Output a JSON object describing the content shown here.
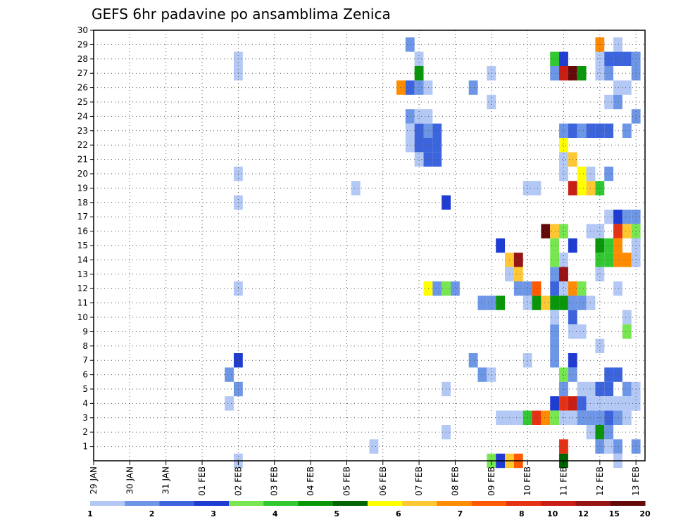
{
  "chart_data": {
    "type": "heatmap",
    "title": "GEFS 6hr padavine po ansamblima Zenica",
    "xlabel": "",
    "ylabel": "",
    "x_tick_labels": [
      "29 JAN",
      "30 JAN",
      "31 JAN",
      "01 FEB",
      "02 FEB",
      "03 FEB",
      "04 FEB",
      "05 FEB",
      "06 FEB",
      "07 FEB",
      "08 FEB",
      "09 FEB",
      "10 FEB",
      "11 FEB",
      "12 FEB",
      "13 FEB"
    ],
    "x_range_days": [
      0,
      15.25
    ],
    "y_tick_labels": [
      "1",
      "2",
      "3",
      "4",
      "5",
      "6",
      "7",
      "8",
      "9",
      "10",
      "11",
      "12",
      "13",
      "14",
      "15",
      "16",
      "17",
      "18",
      "19",
      "20",
      "21",
      "22",
      "23",
      "24",
      "25",
      "26",
      "27",
      "28",
      "29",
      "30"
    ],
    "ylim": [
      0,
      30
    ],
    "grid": true,
    "colorbar": {
      "placement": "bottom",
      "tick_labels": [
        "1",
        "2",
        "3",
        "4",
        "5",
        "6",
        "7",
        "8",
        "10",
        "12",
        "15",
        "20"
      ],
      "colors": [
        "#b4c8f5",
        "#6e96e6",
        "#3c64dc",
        "#1e3cd2",
        "#78e650",
        "#32c832",
        "#0a960a",
        "#006400",
        "#ffff00",
        "#ffc832",
        "#ff8c00",
        "#ff5a00",
        "#e63214",
        "#c81e14",
        "#961414",
        "#640a0a"
      ]
    },
    "cells": [
      [
        4,
        28,
        1
      ],
      [
        4,
        27,
        1
      ],
      [
        4,
        20,
        1
      ],
      [
        4,
        18,
        1
      ],
      [
        4,
        12,
        1
      ],
      [
        4,
        7,
        4
      ],
      [
        3.75,
        6,
        2
      ],
      [
        4,
        5,
        2
      ],
      [
        3.75,
        4,
        1
      ],
      [
        4,
        0,
        1
      ],
      [
        7.25,
        19,
        1
      ],
      [
        7.75,
        1,
        1
      ],
      [
        8.5,
        26,
        11
      ],
      [
        8.75,
        26,
        3
      ],
      [
        8.75,
        29,
        2
      ],
      [
        8.75,
        23,
        1
      ],
      [
        8.75,
        24,
        2
      ],
      [
        8.75,
        22,
        1
      ],
      [
        9,
        26,
        2
      ],
      [
        9,
        23,
        3
      ],
      [
        9,
        22,
        3
      ],
      [
        9,
        24,
        1
      ],
      [
        9,
        27,
        7
      ],
      [
        9,
        28,
        1
      ],
      [
        9,
        21,
        1
      ],
      [
        9.25,
        26,
        1
      ],
      [
        9.25,
        23,
        2
      ],
      [
        9.25,
        22,
        3
      ],
      [
        9.25,
        21,
        3
      ],
      [
        9.25,
        24,
        1
      ],
      [
        9.5,
        22,
        3
      ],
      [
        9.5,
        21,
        3
      ],
      [
        9.5,
        23,
        3
      ],
      [
        9.25,
        12,
        9
      ],
      [
        9.5,
        12,
        2
      ],
      [
        9.75,
        12,
        5
      ],
      [
        9.75,
        18,
        4
      ],
      [
        10,
        12,
        2
      ],
      [
        9.75,
        5,
        1
      ],
      [
        9.75,
        2,
        1
      ],
      [
        10.5,
        26,
        2
      ],
      [
        10.5,
        7,
        2
      ],
      [
        10.75,
        6,
        2
      ],
      [
        10.75,
        11,
        2
      ],
      [
        11,
        6,
        1
      ],
      [
        11,
        27,
        1
      ],
      [
        11,
        25,
        1
      ],
      [
        11,
        11,
        2
      ],
      [
        11,
        0,
        5
      ],
      [
        11.25,
        0,
        4
      ],
      [
        11.25,
        15,
        4
      ],
      [
        11.25,
        11,
        7
      ],
      [
        11.25,
        3,
        1
      ],
      [
        11.5,
        3,
        1
      ],
      [
        11.5,
        0,
        10
      ],
      [
        11.5,
        14,
        10
      ],
      [
        11.5,
        13,
        1
      ],
      [
        11.75,
        14,
        15
      ],
      [
        11.75,
        13,
        10
      ],
      [
        11.75,
        12,
        2
      ],
      [
        11.75,
        3,
        1
      ],
      [
        11.75,
        0,
        12
      ],
      [
        12,
        3,
        6
      ],
      [
        12,
        12,
        2
      ],
      [
        12,
        11,
        1
      ],
      [
        12,
        19,
        1
      ],
      [
        12,
        7,
        1
      ],
      [
        12.25,
        3,
        13
      ],
      [
        12.25,
        11,
        7
      ],
      [
        12.25,
        12,
        12
      ],
      [
        12.25,
        19,
        1
      ],
      [
        12.5,
        3,
        11
      ],
      [
        12.5,
        16,
        16
      ],
      [
        12.5,
        11,
        10
      ],
      [
        12.75,
        28,
        6
      ],
      [
        12.75,
        27,
        2
      ],
      [
        12.75,
        16,
        10
      ],
      [
        12.75,
        15,
        5
      ],
      [
        12.75,
        14,
        5
      ],
      [
        12.75,
        13,
        2
      ],
      [
        12.75,
        12,
        3
      ],
      [
        12.75,
        11,
        7
      ],
      [
        12.75,
        9,
        2
      ],
      [
        12.75,
        8,
        2
      ],
      [
        12.75,
        7,
        2
      ],
      [
        12.75,
        4,
        4
      ],
      [
        12.75,
        3,
        5
      ],
      [
        12.75,
        10,
        1
      ],
      [
        13,
        28,
        4
      ],
      [
        13,
        27,
        14
      ],
      [
        13,
        22,
        9
      ],
      [
        13,
        21,
        1
      ],
      [
        13,
        16,
        5
      ],
      [
        13,
        14,
        1
      ],
      [
        13,
        13,
        15
      ],
      [
        13,
        12,
        1
      ],
      [
        13,
        11,
        7
      ],
      [
        13,
        6,
        5
      ],
      [
        13,
        5,
        2
      ],
      [
        13,
        4,
        13
      ],
      [
        13,
        3,
        1
      ],
      [
        13,
        1,
        13
      ],
      [
        13,
        0,
        8
      ],
      [
        13,
        23,
        2
      ],
      [
        13,
        20,
        1
      ],
      [
        13.25,
        27,
        16
      ],
      [
        13.25,
        23,
        3
      ],
      [
        13.25,
        21,
        10
      ],
      [
        13.25,
        19,
        14
      ],
      [
        13.25,
        15,
        4
      ],
      [
        13.25,
        12,
        11
      ],
      [
        13.25,
        11,
        2
      ],
      [
        13.25,
        10,
        3
      ],
      [
        13.25,
        9,
        1
      ],
      [
        13.25,
        7,
        4
      ],
      [
        13.25,
        6,
        2
      ],
      [
        13.25,
        4,
        14
      ],
      [
        13.25,
        3,
        1
      ],
      [
        13.5,
        27,
        7
      ],
      [
        13.5,
        23,
        2
      ],
      [
        13.5,
        20,
        9
      ],
      [
        13.5,
        19,
        9
      ],
      [
        13.5,
        12,
        5
      ],
      [
        13.5,
        11,
        2
      ],
      [
        13.5,
        9,
        1
      ],
      [
        13.5,
        5,
        1
      ],
      [
        13.5,
        4,
        3
      ],
      [
        13.5,
        3,
        2
      ],
      [
        13.75,
        23,
        3
      ],
      [
        13.75,
        20,
        1
      ],
      [
        13.75,
        19,
        10
      ],
      [
        13.75,
        16,
        1
      ],
      [
        13.75,
        11,
        1
      ],
      [
        13.75,
        5,
        1
      ],
      [
        13.75,
        4,
        1
      ],
      [
        13.75,
        3,
        2
      ],
      [
        13.75,
        2,
        1
      ],
      [
        14,
        29,
        11
      ],
      [
        14,
        28,
        1
      ],
      [
        14,
        27,
        1
      ],
      [
        14,
        23,
        3
      ],
      [
        14,
        19,
        6
      ],
      [
        14,
        16,
        1
      ],
      [
        14,
        15,
        7
      ],
      [
        14,
        14,
        6
      ],
      [
        14,
        13,
        1
      ],
      [
        14,
        8,
        1
      ],
      [
        14,
        5,
        3
      ],
      [
        14,
        3,
        2
      ],
      [
        14,
        2,
        7
      ],
      [
        14,
        1,
        2
      ],
      [
        14,
        4,
        1
      ],
      [
        14.25,
        28,
        3
      ],
      [
        14.25,
        27,
        2
      ],
      [
        14.25,
        25,
        1
      ],
      [
        14.25,
        23,
        3
      ],
      [
        14.25,
        20,
        2
      ],
      [
        14.25,
        17,
        1
      ],
      [
        14.25,
        15,
        6
      ],
      [
        14.25,
        14,
        6
      ],
      [
        14.25,
        6,
        3
      ],
      [
        14.25,
        5,
        3
      ],
      [
        14.25,
        4,
        1
      ],
      [
        14.25,
        3,
        3
      ],
      [
        14.25,
        2,
        2
      ],
      [
        14.25,
        1,
        1
      ],
      [
        14.5,
        29,
        1
      ],
      [
        14.5,
        28,
        3
      ],
      [
        14.5,
        26,
        1
      ],
      [
        14.5,
        25,
        2
      ],
      [
        14.5,
        17,
        4
      ],
      [
        14.5,
        16,
        13
      ],
      [
        14.5,
        15,
        11
      ],
      [
        14.5,
        14,
        11
      ],
      [
        14.5,
        12,
        1
      ],
      [
        14.5,
        6,
        3
      ],
      [
        14.5,
        4,
        1
      ],
      [
        14.5,
        3,
        2
      ],
      [
        14.5,
        1,
        2
      ],
      [
        14.5,
        0,
        1
      ],
      [
        14.75,
        28,
        3
      ],
      [
        14.75,
        26,
        1
      ],
      [
        14.75,
        23,
        2
      ],
      [
        14.75,
        17,
        2
      ],
      [
        14.75,
        16,
        10
      ],
      [
        14.75,
        14,
        11
      ],
      [
        14.75,
        10,
        1
      ],
      [
        14.75,
        9,
        5
      ],
      [
        14.75,
        5,
        2
      ],
      [
        14.75,
        4,
        1
      ],
      [
        14.75,
        3,
        1
      ],
      [
        15,
        28,
        2
      ],
      [
        15,
        27,
        2
      ],
      [
        15,
        24,
        2
      ],
      [
        15,
        17,
        2
      ],
      [
        15,
        16,
        5
      ],
      [
        15,
        15,
        1
      ],
      [
        15,
        14,
        1
      ],
      [
        15,
        5,
        1
      ],
      [
        15,
        1,
        2
      ],
      [
        15,
        4,
        1
      ]
    ]
  }
}
